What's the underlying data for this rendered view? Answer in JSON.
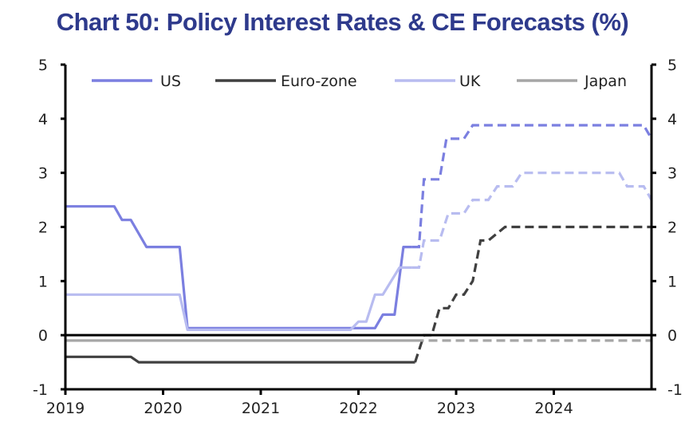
{
  "chart_data": {
    "type": "line",
    "title": "Chart 50: Policy Interest Rates & CE Forecasts (%)",
    "xlabel": "",
    "ylabel": "",
    "xlim": [
      2019.0,
      2025.0
    ],
    "ylim": [
      -1,
      5
    ],
    "x_ticks": [
      "2019",
      "2020",
      "2021",
      "2022",
      "2023",
      "2024"
    ],
    "y_ticks": [
      "5",
      "4",
      "3",
      "2",
      "1",
      "0",
      "-1"
    ],
    "forecast_start": 2022.67,
    "legend_position": "top",
    "series": [
      {
        "name": "US",
        "color": "#7B7FE0",
        "actual": [
          [
            2019.0,
            2.38
          ],
          [
            2019.5,
            2.38
          ],
          [
            2019.58,
            2.13
          ],
          [
            2019.67,
            2.13
          ],
          [
            2019.83,
            1.63
          ],
          [
            2020.17,
            1.63
          ],
          [
            2020.25,
            0.13
          ],
          [
            2022.17,
            0.13
          ],
          [
            2022.25,
            0.38
          ],
          [
            2022.37,
            0.38
          ],
          [
            2022.46,
            1.63
          ],
          [
            2022.55,
            1.63
          ]
        ],
        "forecast": [
          [
            2022.55,
            1.63
          ],
          [
            2022.62,
            1.63
          ],
          [
            2022.67,
            2.88
          ],
          [
            2022.83,
            2.88
          ],
          [
            2022.9,
            3.63
          ],
          [
            2023.08,
            3.63
          ],
          [
            2023.17,
            3.88
          ],
          [
            2024.92,
            3.88
          ],
          [
            2025.0,
            3.63
          ]
        ]
      },
      {
        "name": "Euro-zone",
        "color": "#404040",
        "actual": [
          [
            2019.0,
            -0.4
          ],
          [
            2019.67,
            -0.4
          ],
          [
            2019.75,
            -0.5
          ],
          [
            2022.58,
            -0.5
          ]
        ],
        "forecast": [
          [
            2022.58,
            -0.5
          ],
          [
            2022.67,
            0.0
          ],
          [
            2022.75,
            0.0
          ],
          [
            2022.83,
            0.5
          ],
          [
            2022.92,
            0.5
          ],
          [
            2023.0,
            0.75
          ],
          [
            2023.08,
            0.75
          ],
          [
            2023.17,
            1.0
          ],
          [
            2023.25,
            1.75
          ],
          [
            2023.33,
            1.75
          ],
          [
            2023.5,
            2.0
          ],
          [
            2025.0,
            2.0
          ]
        ]
      },
      {
        "name": "UK",
        "color": "#B8BCF0",
        "actual": [
          [
            2019.0,
            0.75
          ],
          [
            2020.17,
            0.75
          ],
          [
            2020.25,
            0.1
          ],
          [
            2021.92,
            0.1
          ],
          [
            2022.0,
            0.25
          ],
          [
            2022.08,
            0.25
          ],
          [
            2022.17,
            0.75
          ],
          [
            2022.25,
            0.75
          ],
          [
            2022.42,
            1.25
          ],
          [
            2022.55,
            1.25
          ]
        ],
        "forecast": [
          [
            2022.55,
            1.25
          ],
          [
            2022.62,
            1.25
          ],
          [
            2022.67,
            1.75
          ],
          [
            2022.83,
            1.75
          ],
          [
            2022.92,
            2.25
          ],
          [
            2023.08,
            2.25
          ],
          [
            2023.17,
            2.5
          ],
          [
            2023.33,
            2.5
          ],
          [
            2023.42,
            2.75
          ],
          [
            2023.58,
            2.75
          ],
          [
            2023.67,
            3.0
          ],
          [
            2024.67,
            3.0
          ],
          [
            2024.75,
            2.75
          ],
          [
            2024.92,
            2.75
          ],
          [
            2025.0,
            2.5
          ]
        ]
      },
      {
        "name": "Japan",
        "color": "#A6A6A6",
        "actual": [
          [
            2019.0,
            -0.1
          ],
          [
            2022.58,
            -0.1
          ]
        ],
        "forecast": [
          [
            2022.58,
            -0.1
          ],
          [
            2025.0,
            -0.1
          ]
        ]
      }
    ]
  }
}
